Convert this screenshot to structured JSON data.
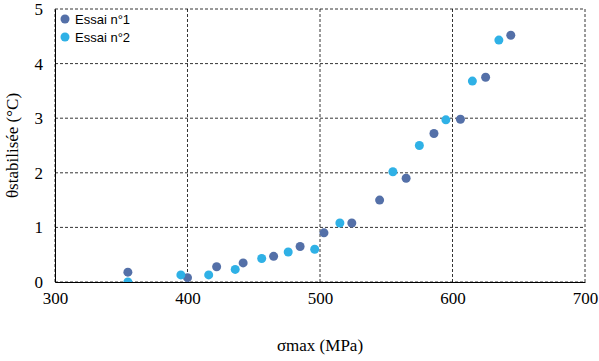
{
  "chart_data": {
    "type": "scatter",
    "x_label": "σmax (MPa)",
    "y_label": "θstabilisée (°C)",
    "xlim": [
      300,
      700
    ],
    "xticks": [
      300,
      400,
      500,
      600,
      700
    ],
    "ylim": [
      0,
      5
    ],
    "yticks": [
      0,
      1,
      2,
      3,
      4,
      5
    ],
    "grid": true,
    "legend": "upper left",
    "marker": "circle",
    "series": [
      {
        "name": "Essai n°1",
        "color": "#5470a8",
        "x": [
          355,
          400,
          422,
          442,
          465,
          485,
          503,
          524,
          545,
          565,
          586,
          606,
          625,
          644
        ],
        "values": [
          0.18,
          0.08,
          0.28,
          0.35,
          0.47,
          0.65,
          0.9,
          1.08,
          1.5,
          1.9,
          2.72,
          2.98,
          3.75,
          4.52
        ]
      },
      {
        "name": "Essai n°2",
        "color": "#2fb1e6",
        "x": [
          355,
          395,
          416,
          436,
          456,
          476,
          496,
          515,
          555,
          575,
          595,
          615,
          635
        ],
        "values": [
          0.0,
          0.13,
          0.13,
          0.23,
          0.43,
          0.55,
          0.6,
          1.08,
          2.02,
          2.5,
          2.97,
          3.68,
          4.43
        ]
      }
    ]
  }
}
